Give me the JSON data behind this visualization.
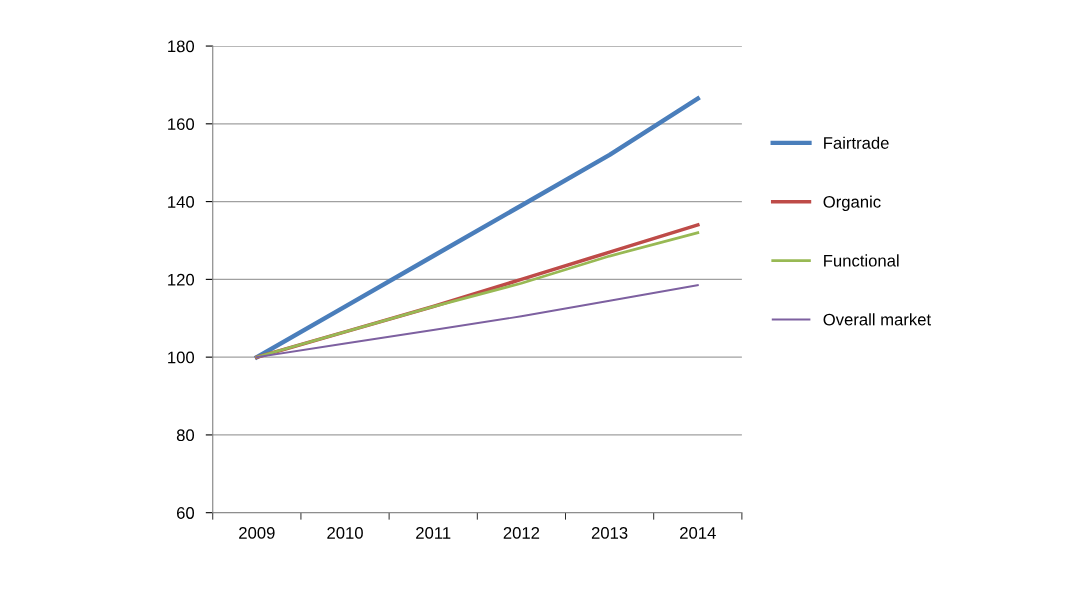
{
  "chart_data": {
    "type": "line",
    "categories": [
      "2009",
      "2010",
      "2011",
      "2012",
      "2013",
      "2014"
    ],
    "series": [
      {
        "name": "Fairtrade",
        "color": "#4a7ebb",
        "values": [
          100,
          113,
          126,
          139,
          152,
          166.5
        ]
      },
      {
        "name": "Organic",
        "color": "#be4b48",
        "values": [
          100,
          106.5,
          113,
          120,
          127,
          134
        ]
      },
      {
        "name": "Functional",
        "color": "#98b954",
        "values": [
          100,
          106.5,
          113,
          119,
          126,
          132
        ]
      },
      {
        "name": "Overall market",
        "color": "#7d60a0",
        "values": [
          100,
          103.5,
          107,
          110.5,
          114.5,
          118.5
        ]
      }
    ],
    "ylim": [
      60,
      180
    ],
    "yticks": [
      60,
      80,
      100,
      120,
      140,
      160,
      180
    ],
    "grid": "y",
    "legend": "right",
    "marker": "none",
    "line_style": "solid"
  }
}
